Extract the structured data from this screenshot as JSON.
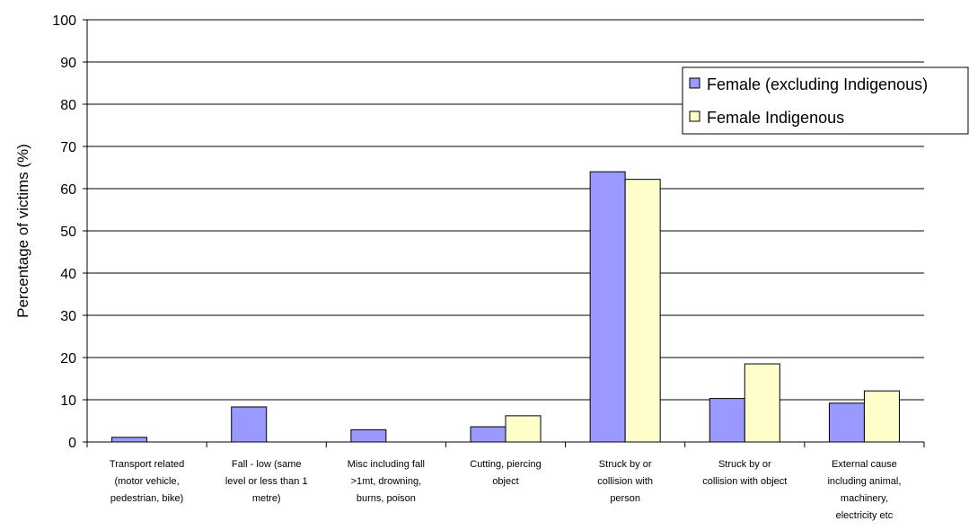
{
  "chart_data": {
    "type": "bar",
    "ylabel": "Percentage of victims (%)",
    "ylim": [
      0,
      100
    ],
    "ytick_step": 10,
    "grid": true,
    "legend_position": "top-right",
    "categories": [
      [
        "Transport related",
        "(motor vehicle,",
        "pedestrian, bike)"
      ],
      [
        "Fall - low (same",
        "level or less than 1",
        "metre)"
      ],
      [
        "Misc including fall",
        ">1mt, drowning,",
        "burns, poison"
      ],
      [
        "Cutting, piercing",
        "object"
      ],
      [
        "Struck by or",
        "collision with",
        "person"
      ],
      [
        "Struck by or",
        "collision with object"
      ],
      [
        "External cause",
        "including animal,",
        "machinery,",
        "electricity etc"
      ]
    ],
    "series": [
      {
        "name": "Female (excluding Indigenous)",
        "color": "#9999ff",
        "values": [
          1.1,
          8.3,
          2.9,
          3.6,
          64.0,
          10.3,
          9.2
        ]
      },
      {
        "name": "Female Indigenous",
        "color": "#ffffcc",
        "values": [
          0,
          0,
          0,
          6.2,
          62.2,
          18.5,
          12.1
        ]
      }
    ]
  }
}
